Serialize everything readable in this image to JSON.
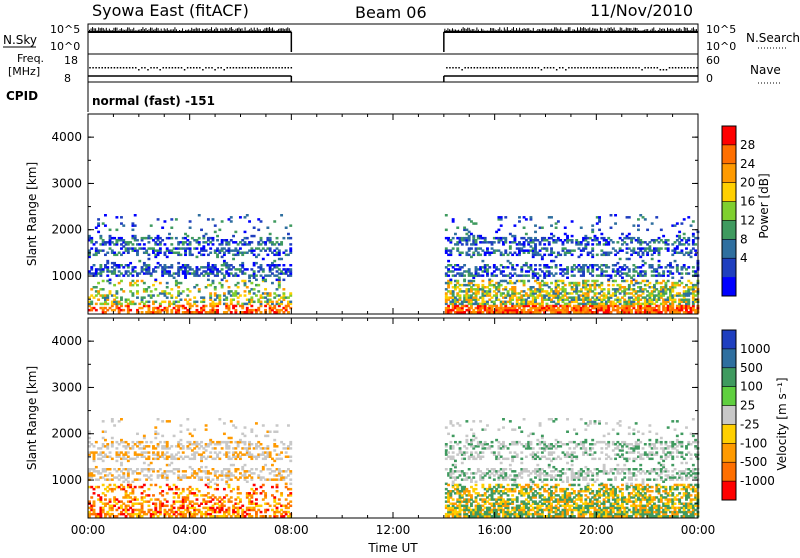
{
  "header": {
    "station": "Syowa East (fitACF)",
    "beam": "Beam 06",
    "date": "11/Nov/2010"
  },
  "summary": {
    "nsky_label": "N.Sky",
    "nsky_ticks": [
      "10^5",
      "10^0"
    ],
    "nsearch_label": "N.Search",
    "nsearch_ticks": [
      "10^5",
      "10^0"
    ],
    "freq_label_1": "Freq.",
    "freq_label_2": "[MHz]",
    "freq_ticks": [
      "18",
      "8"
    ],
    "nave_label": "Nave",
    "nave_ticks": [
      "60",
      "0"
    ],
    "cpid_label": "CPID",
    "cpid_value": "normal (fast) -151"
  },
  "chart_data": [
    {
      "type": "heatmap",
      "name": "power",
      "ylabel": "Slant Range [km]",
      "yticks": [
        "4000",
        "3000",
        "2000",
        "1000"
      ],
      "ylim": [
        180,
        4500
      ],
      "colorbar_label": "Power [dB]",
      "colorbar_ticks": [
        "28",
        "24",
        "20",
        "16",
        "12",
        "8",
        "4"
      ],
      "colorbar_colors": [
        "#ff0000",
        "#ff6f00",
        "#ff9a00",
        "#ffcf00",
        "#7fcf2f",
        "#3f9a5f",
        "#2f6f9f",
        "#1f3fbf",
        "#0000ff"
      ],
      "data_gaps": [
        [
          8,
          14
        ]
      ]
    },
    {
      "type": "heatmap",
      "name": "velocity",
      "ylabel": "Slant Range [km]",
      "yticks": [
        "4000",
        "3000",
        "2000",
        "1000"
      ],
      "ylim": [
        180,
        4500
      ],
      "colorbar_label": "Velocity [m s⁻¹]",
      "colorbar_ticks": [
        "1000",
        "500",
        "100",
        "25",
        "-25",
        "-100",
        "-500",
        "-1000"
      ],
      "colorbar_colors": [
        "#1f3fbf",
        "#2f6f9f",
        "#3f9a5f",
        "#5fcf3f",
        "#c8c8c8",
        "#ffcf00",
        "#ff9a00",
        "#ff6f00",
        "#ff0000"
      ],
      "data_gaps": [
        [
          8,
          14
        ]
      ]
    }
  ],
  "xaxis": {
    "label": "Time UT",
    "ticks": [
      "00:00",
      "04:00",
      "08:00",
      "12:00",
      "16:00",
      "20:00",
      "00:00"
    ],
    "xlim": [
      0,
      24
    ]
  }
}
